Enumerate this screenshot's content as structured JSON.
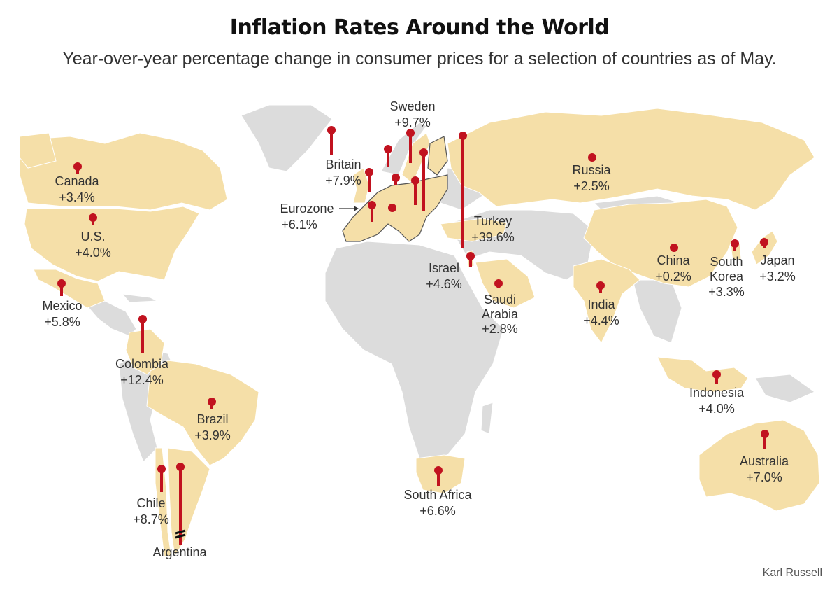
{
  "header": {
    "title": "Inflation Rates Around the World",
    "subtitle": "Year-over-year percentage change in consumer prices for a selection of countries as of May."
  },
  "credit": "Karl Russell",
  "colors": {
    "highlight_land": "#f5dfa8",
    "other_land": "#dcdcdc",
    "borders": "#ffffff",
    "pin": "#c1121f"
  },
  "legend_arrow_note": "Eurozone",
  "countries": [
    {
      "name": "Canada",
      "value": "+3.4%",
      "inflation": 3.4
    },
    {
      "name": "U.S.",
      "value": "+4.0%",
      "inflation": 4.0
    },
    {
      "name": "Mexico",
      "value": "+5.8%",
      "inflation": 5.8
    },
    {
      "name": "Colombia",
      "value": "+12.4%",
      "inflation": 12.4
    },
    {
      "name": "Brazil",
      "value": "+3.9%",
      "inflation": 3.9
    },
    {
      "name": "Chile",
      "value": "+8.7%",
      "inflation": 8.7
    },
    {
      "name": "Argentina",
      "value": "",
      "inflation": null
    },
    {
      "name": "Britain",
      "value": "+7.9%",
      "inflation": 7.9
    },
    {
      "name": "Sweden",
      "value": "+9.7%",
      "inflation": 9.7
    },
    {
      "name": "Eurozone",
      "value": "+6.1%",
      "inflation": 6.1
    },
    {
      "name": "Turkey",
      "value": "+39.6%",
      "inflation": 39.6
    },
    {
      "name": "Israel",
      "value": "+4.6%",
      "inflation": 4.6
    },
    {
      "name": "Saudi Arabia",
      "value": "+2.8%",
      "inflation": 2.8
    },
    {
      "name": "South Africa",
      "value": "+6.6%",
      "inflation": 6.6
    },
    {
      "name": "Russia",
      "value": "+2.5%",
      "inflation": 2.5
    },
    {
      "name": "India",
      "value": "+4.4%",
      "inflation": 4.4
    },
    {
      "name": "China",
      "value": "+0.2%",
      "inflation": 0.2
    },
    {
      "name": "South Korea",
      "value": "+3.3%",
      "inflation": 3.3
    },
    {
      "name": "Japan",
      "value": "+3.2%",
      "inflation": 3.2
    },
    {
      "name": "Indonesia",
      "value": "+4.0%",
      "inflation": 4.0
    },
    {
      "name": "Australia",
      "value": "+7.0%",
      "inflation": 7.0
    }
  ]
}
